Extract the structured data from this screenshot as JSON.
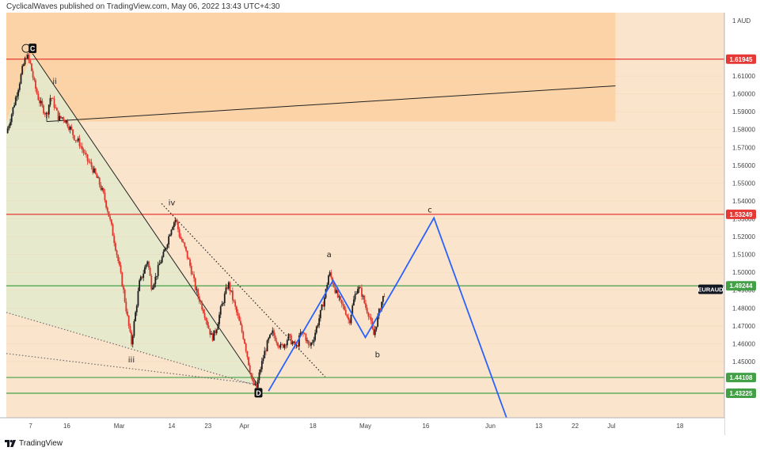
{
  "header": {
    "publisher_text": "CyclicalWaves published on TradingView.com, May 06, 2022 13:43 UTC+4:30"
  },
  "footer": {
    "brand": "TradingView"
  },
  "colors": {
    "background": "#fbe4cc",
    "zone_orange": "#fcd3a6",
    "wedge_fill": "#e3e9cc",
    "up_candle": "#1e1e1e",
    "down_candle": "#e0352b",
    "red_line": "#e53935",
    "green_line": "#43a047",
    "projection": "#2962ff",
    "trendline": "#222222"
  },
  "chart_data": {
    "type": "candlestick",
    "symbol": "EURAUD",
    "currency_label": "AUD",
    "ylim": [
      1.4185,
      1.6455
    ],
    "y_ticks": [
      1.45,
      1.46,
      1.47,
      1.48,
      1.49,
      1.5,
      1.51,
      1.52,
      1.53,
      1.54,
      1.55,
      1.56,
      1.57,
      1.58,
      1.59,
      1.6,
      1.61
    ],
    "y_tick_labels": [
      "1.45000",
      "1.46000",
      "1.47000",
      "1.48000",
      "1.49000",
      "1.50000",
      "1.51000",
      "1.52000",
      "1.53000",
      "1.54000",
      "1.55000",
      "1.56000",
      "1.57000",
      "1.58000",
      "1.59000",
      "1.60000",
      "1.61000"
    ],
    "x_ticks": [
      {
        "label": "7",
        "day": 6
      },
      {
        "label": "16",
        "day": 15
      },
      {
        "label": "Mar",
        "day": 28
      },
      {
        "label": "14",
        "day": 41
      },
      {
        "label": "23",
        "day": 50
      },
      {
        "label": "Apr",
        "day": 59
      },
      {
        "label": "18",
        "day": 76
      },
      {
        "label": "May",
        "day": 89
      },
      {
        "label": "16",
        "day": 104
      },
      {
        "label": "Jun",
        "day": 120
      },
      {
        "label": "13",
        "day": 132
      },
      {
        "label": "22",
        "day": 141
      },
      {
        "label": "Jul",
        "day": 150
      },
      {
        "label": "18",
        "day": 167
      }
    ],
    "x_range_days": [
      0,
      178
    ],
    "horizontal_levels": [
      {
        "value": 1.61945,
        "label": "1.61945",
        "color": "red"
      },
      {
        "value": 1.53249,
        "label": "1.53249",
        "color": "red"
      },
      {
        "value": 1.49244,
        "label": "1.49244",
        "color": "green"
      },
      {
        "value": 1.44108,
        "label": "1.44108",
        "color": "green"
      },
      {
        "value": 1.43225,
        "label": "1.43225",
        "color": "green"
      }
    ],
    "last_price": {
      "label": "EURAUD",
      "value": 1.4905
    },
    "price_path": [
      {
        "day": 0,
        "price": 1.578
      },
      {
        "day": 1,
        "price": 1.586
      },
      {
        "day": 2,
        "price": 1.595
      },
      {
        "day": 3,
        "price": 1.604
      },
      {
        "day": 4,
        "price": 1.614
      },
      {
        "day": 5,
        "price": 1.622
      },
      {
        "day": 6,
        "price": 1.616
      },
      {
        "day": 7,
        "price": 1.605
      },
      {
        "day": 8,
        "price": 1.597
      },
      {
        "day": 9,
        "price": 1.592
      },
      {
        "day": 10,
        "price": 1.588
      },
      {
        "day": 11,
        "price": 1.599
      },
      {
        "day": 12,
        "price": 1.593
      },
      {
        "day": 13,
        "price": 1.586
      },
      {
        "day": 14,
        "price": 1.587
      },
      {
        "day": 15,
        "price": 1.584
      },
      {
        "day": 16,
        "price": 1.58
      },
      {
        "day": 17,
        "price": 1.575
      },
      {
        "day": 18,
        "price": 1.573
      },
      {
        "day": 19,
        "price": 1.568
      },
      {
        "day": 20,
        "price": 1.563
      },
      {
        "day": 21,
        "price": 1.56
      },
      {
        "day": 22,
        "price": 1.555
      },
      {
        "day": 23,
        "price": 1.55
      },
      {
        "day": 24,
        "price": 1.544
      },
      {
        "day": 25,
        "price": 1.536
      },
      {
        "day": 26,
        "price": 1.526
      },
      {
        "day": 27,
        "price": 1.515
      },
      {
        "day": 28,
        "price": 1.503
      },
      {
        "day": 29,
        "price": 1.49
      },
      {
        "day": 30,
        "price": 1.475
      },
      {
        "day": 31,
        "price": 1.46
      },
      {
        "day": 32,
        "price": 1.477
      },
      {
        "day": 33,
        "price": 1.494
      },
      {
        "day": 34,
        "price": 1.5
      },
      {
        "day": 35,
        "price": 1.507
      },
      {
        "day": 36,
        "price": 1.492
      },
      {
        "day": 37,
        "price": 1.497
      },
      {
        "day": 38,
        "price": 1.505
      },
      {
        "day": 39,
        "price": 1.51
      },
      {
        "day": 40,
        "price": 1.518
      },
      {
        "day": 41,
        "price": 1.526
      },
      {
        "day": 42,
        "price": 1.53
      },
      {
        "day": 43,
        "price": 1.52
      },
      {
        "day": 44,
        "price": 1.515
      },
      {
        "day": 45,
        "price": 1.508
      },
      {
        "day": 46,
        "price": 1.5
      },
      {
        "day": 47,
        "price": 1.49
      },
      {
        "day": 48,
        "price": 1.484
      },
      {
        "day": 49,
        "price": 1.478
      },
      {
        "day": 50,
        "price": 1.47
      },
      {
        "day": 51,
        "price": 1.463
      },
      {
        "day": 52,
        "price": 1.468
      },
      {
        "day": 53,
        "price": 1.478
      },
      {
        "day": 54,
        "price": 1.486
      },
      {
        "day": 55,
        "price": 1.494
      },
      {
        "day": 56,
        "price": 1.486
      },
      {
        "day": 57,
        "price": 1.478
      },
      {
        "day": 58,
        "price": 1.47
      },
      {
        "day": 59,
        "price": 1.462
      },
      {
        "day": 60,
        "price": 1.45
      },
      {
        "day": 61,
        "price": 1.438
      },
      {
        "day": 62,
        "price": 1.435
      },
      {
        "day": 63,
        "price": 1.446
      },
      {
        "day": 64,
        "price": 1.455
      },
      {
        "day": 65,
        "price": 1.462
      },
      {
        "day": 66,
        "price": 1.466
      },
      {
        "day": 67,
        "price": 1.462
      },
      {
        "day": 68,
        "price": 1.458
      },
      {
        "day": 69,
        "price": 1.46
      },
      {
        "day": 70,
        "price": 1.464
      },
      {
        "day": 71,
        "price": 1.46
      },
      {
        "day": 72,
        "price": 1.458
      },
      {
        "day": 73,
        "price": 1.466
      },
      {
        "day": 74,
        "price": 1.465
      },
      {
        "day": 75,
        "price": 1.458
      },
      {
        "day": 76,
        "price": 1.462
      },
      {
        "day": 77,
        "price": 1.47
      },
      {
        "day": 78,
        "price": 1.478
      },
      {
        "day": 79,
        "price": 1.487
      },
      {
        "day": 80,
        "price": 1.5
      },
      {
        "day": 81,
        "price": 1.494
      },
      {
        "day": 82,
        "price": 1.487
      },
      {
        "day": 83,
        "price": 1.482
      },
      {
        "day": 84,
        "price": 1.479
      },
      {
        "day": 85,
        "price": 1.472
      },
      {
        "day": 86,
        "price": 1.483
      },
      {
        "day": 87,
        "price": 1.492
      },
      {
        "day": 88,
        "price": 1.489
      },
      {
        "day": 89,
        "price": 1.481
      },
      {
        "day": 90,
        "price": 1.476
      },
      {
        "day": 91,
        "price": 1.464
      },
      {
        "day": 92,
        "price": 1.474
      },
      {
        "day": 93,
        "price": 1.483
      },
      {
        "day": 94,
        "price": 1.4905
      }
    ],
    "wave_labels": [
      {
        "text": "i",
        "day": 10,
        "price": 1.5845
      },
      {
        "text": "ii",
        "day": 12,
        "price": 1.6055
      },
      {
        "text": "iii",
        "day": 31,
        "price": 1.4495
      },
      {
        "text": "iv",
        "day": 41,
        "price": 1.5375
      },
      {
        "text": "a",
        "day": 80,
        "price": 1.5085
      },
      {
        "text": "b",
        "day": 92,
        "price": 1.4525
      },
      {
        "text": "c",
        "day": 105,
        "price": 1.5335
      }
    ],
    "markers": [
      {
        "text": "C",
        "day": 6.5,
        "price": 1.6255
      },
      {
        "text": "D",
        "day": 62.5,
        "price": 1.4325
      }
    ],
    "projection_path": [
      {
        "day": 65,
        "price": 1.4335
      },
      {
        "day": 81,
        "price": 1.4955
      },
      {
        "day": 89,
        "price": 1.4635
      },
      {
        "day": 97,
        "price": 1.4945
      },
      {
        "day": 106,
        "price": 1.5305
      },
      {
        "day": 124,
        "price": 1.4185
      }
    ],
    "trendlines": [
      {
        "style": "solid",
        "from": {
          "day": 6.5,
          "price": 1.6225
        },
        "to": {
          "day": 62.5,
          "price": 1.4365
        }
      },
      {
        "style": "solid",
        "from": {
          "day": 10,
          "price": 1.5845
        },
        "to": {
          "day": 151,
          "price": 1.6045
        }
      },
      {
        "style": "dotted",
        "from": {
          "day": 38.5,
          "price": 1.5385
        },
        "to": {
          "day": 79,
          "price": 1.4415
        }
      },
      {
        "style": "dotted",
        "from": {
          "day": 0,
          "price": 1.4775
        },
        "to": {
          "day": 62,
          "price": 1.4365
        }
      },
      {
        "style": "dotted",
        "from": {
          "day": 0,
          "price": 1.4545
        },
        "to": {
          "day": 62,
          "price": 1.4375
        }
      }
    ],
    "zones": [
      {
        "name": "orange-zone",
        "from": {
          "day": 0,
          "price": 1.6455
        },
        "to": {
          "day": 151,
          "price": 1.5845
        }
      }
    ]
  }
}
